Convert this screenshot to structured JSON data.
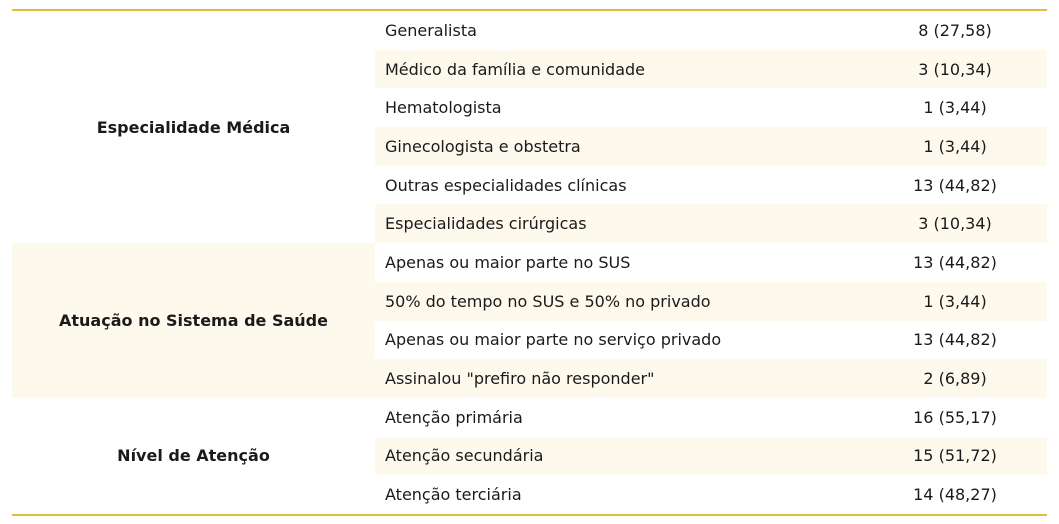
{
  "colors": {
    "rule": "#e0bd3f",
    "stripe": "#fdf9ed"
  },
  "groups": [
    {
      "label": "Especialidade Médica",
      "rows": [
        {
          "item": "Generalista",
          "value": "8 (27,58)"
        },
        {
          "item": "Médico da família e comunidade",
          "value": "3 (10,34)"
        },
        {
          "item": "Hematologista",
          "value": "1 (3,44)"
        },
        {
          "item": "Ginecologista e obstetra",
          "value": "1 (3,44)"
        },
        {
          "item": "Outras especialidades clínicas",
          "value": "13 (44,82)"
        },
        {
          "item": "Especialidades cirúrgicas",
          "value": "3 (10,34)"
        }
      ]
    },
    {
      "label": "Atuação no Sistema de Saúde",
      "rows": [
        {
          "item": "Apenas ou maior parte no SUS",
          "value": "13 (44,82)"
        },
        {
          "item": "50% do tempo no SUS e 50% no privado",
          "value": "1 (3,44)"
        },
        {
          "item": "Apenas ou maior parte no serviço privado",
          "value": "13 (44,82)"
        },
        {
          "item": "Assinalou \"prefiro não responder\"",
          "value": "2 (6,89)"
        }
      ]
    },
    {
      "label": "Nível de Atenção",
      "rows": [
        {
          "item": "Atenção primária",
          "value": "16 (55,17)"
        },
        {
          "item": "Atenção secundária",
          "value": "15 (51,72)"
        },
        {
          "item": "Atenção terciária",
          "value": "14 (48,27)"
        }
      ]
    }
  ]
}
